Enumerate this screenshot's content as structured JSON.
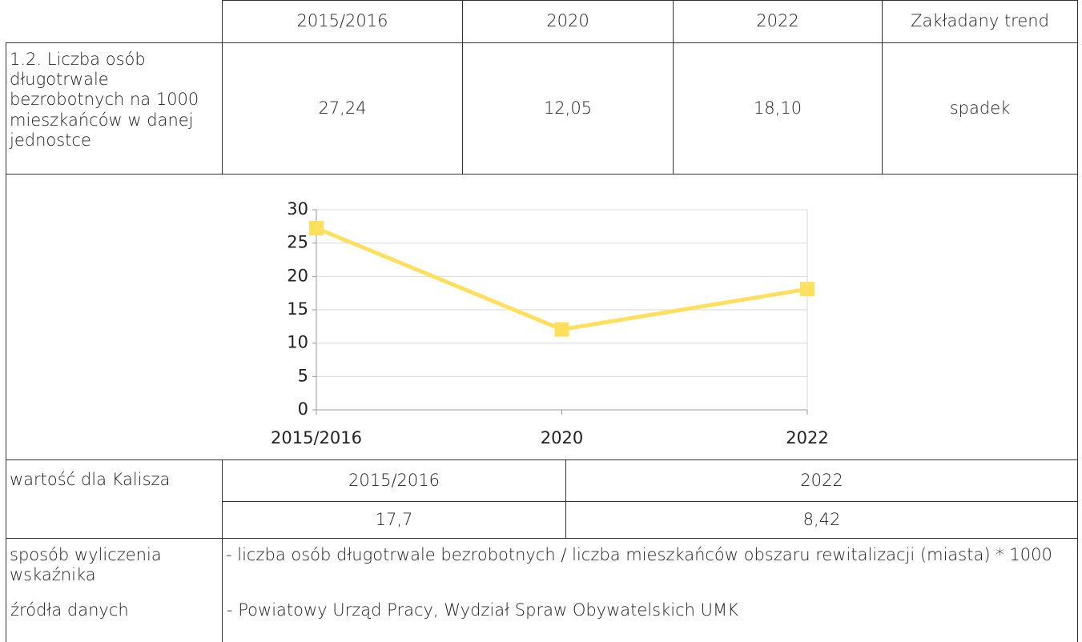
{
  "table": {
    "header": [
      "2015/2016",
      "2020",
      "2022",
      "Zakładany trend"
    ],
    "indicator": {
      "label": "1.2. Liczba osób długotrwale bezrobotnych na 1000 mieszkańców w danej jednostce",
      "values": [
        "27,24",
        "12,05",
        "18,10"
      ],
      "trend": "spadek"
    },
    "kalisz": {
      "label": "wartość dla Kalisza",
      "years": [
        "2015/2016",
        "2022"
      ],
      "values": [
        "17,7",
        "8,42"
      ]
    },
    "method": {
      "label": "sposób wyliczenia wskaźnika",
      "text": "- liczba osób długotrwale bezrobotnych / liczba mieszkańców obszaru rewitalizacji (miasta) * 1000"
    },
    "source": {
      "label": "źródła danych",
      "text": "- Powiatowy Urząd Pracy, Wydział Spraw Obywatelskich UMK"
    }
  },
  "chart_data": {
    "type": "line",
    "categories": [
      "2015/2016",
      "2020",
      "2022"
    ],
    "series": [
      {
        "color": "#ffdf5e",
        "values": [
          27.24,
          12.05,
          18.1
        ]
      }
    ],
    "ylim": [
      0,
      30
    ],
    "yticks": [
      0,
      5,
      10,
      15,
      20,
      25,
      30
    ],
    "grid": true
  }
}
